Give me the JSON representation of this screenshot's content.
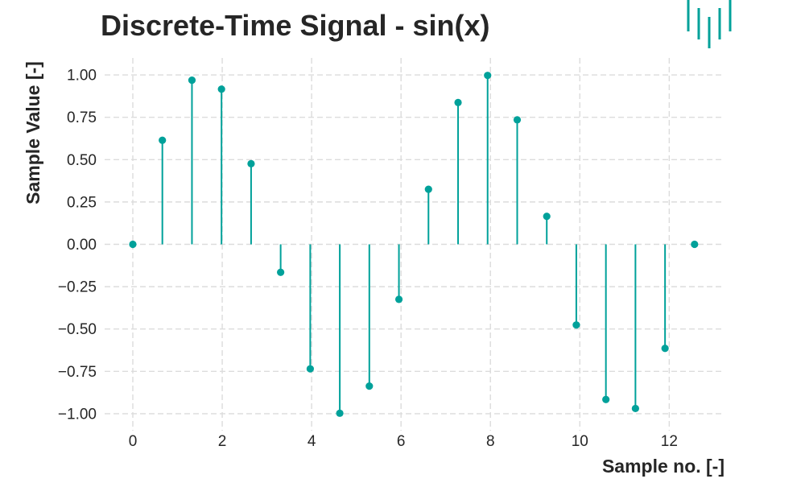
{
  "chart_data": {
    "type": "stem",
    "title": "Discrete-Time Signal - sin(x)",
    "xlabel": "Sample no. [-]",
    "ylabel": "Sample Value [-]",
    "xlim": [
      -0.63,
      13.2
    ],
    "ylim": [
      -1.1,
      1.1
    ],
    "xticks": [
      0,
      2,
      4,
      6,
      8,
      10,
      12
    ],
    "xtick_labels": [
      "0",
      "2",
      "4",
      "6",
      "8",
      "10",
      "12"
    ],
    "yticks": [
      -1.0,
      -0.75,
      -0.5,
      -0.25,
      0.0,
      0.25,
      0.5,
      0.75,
      1.0
    ],
    "ytick_labels": [
      "−1.00",
      "−0.75",
      "−0.50",
      "−0.25",
      "0.00",
      "0.25",
      "0.50",
      "0.75",
      "1.00"
    ],
    "grid": true,
    "color": "#00a19a",
    "x": [
      0,
      0.661,
      1.323,
      1.984,
      2.646,
      3.307,
      3.969,
      4.63,
      5.291,
      5.953,
      6.614,
      7.276,
      7.937,
      8.599,
      9.26,
      9.921,
      10.583,
      11.244,
      11.906,
      12.566
    ],
    "y": [
      0.0,
      0.614,
      0.969,
      0.916,
      0.476,
      -0.165,
      -0.735,
      -0.997,
      -0.837,
      -0.325,
      0.325,
      0.837,
      0.997,
      0.735,
      0.165,
      -0.476,
      -0.916,
      -0.969,
      -0.614,
      0.0
    ]
  },
  "logo": {
    "name": "logo-icon",
    "color": "#00a19a"
  }
}
